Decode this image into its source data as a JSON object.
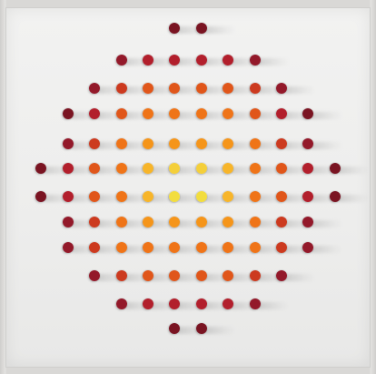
{
  "artwork": {
    "description_visible_text": "",
    "colors": {
      "panel_background": "#efefee",
      "frame_edge": "#cfcecc",
      "palette": [
        "#7a1422",
        "#93192a",
        "#b21f2c",
        "#cc3a1f",
        "#e0561a",
        "#ef7418",
        "#f5951a",
        "#f7b52a",
        "#f4cf3a",
        "#f2dd3e"
      ]
    },
    "rows": [
      [
        9,
        9
      ],
      [
        8,
        7,
        7,
        7,
        7,
        8
      ],
      [
        8,
        6,
        5,
        5,
        5,
        5,
        6,
        8
      ],
      [
        9,
        7,
        5,
        4,
        4,
        4,
        4,
        5,
        7,
        9
      ],
      [
        8,
        6,
        4,
        3,
        3,
        3,
        3,
        4,
        6,
        8
      ],
      [
        9,
        7,
        5,
        4,
        2,
        1,
        1,
        2,
        4,
        5,
        7,
        9
      ],
      [
        9,
        7,
        5,
        4,
        2,
        0,
        0,
        2,
        4,
        5,
        7,
        9
      ],
      [
        8,
        6,
        4,
        3,
        3,
        3,
        3,
        4,
        6,
        8
      ],
      [
        8,
        6,
        4,
        4,
        4,
        4,
        4,
        4,
        6,
        8
      ],
      [
        8,
        6,
        5,
        5,
        5,
        5,
        6,
        8
      ],
      [
        8,
        7,
        7,
        7,
        7,
        8
      ],
      [
        9,
        9
      ]
    ]
  }
}
